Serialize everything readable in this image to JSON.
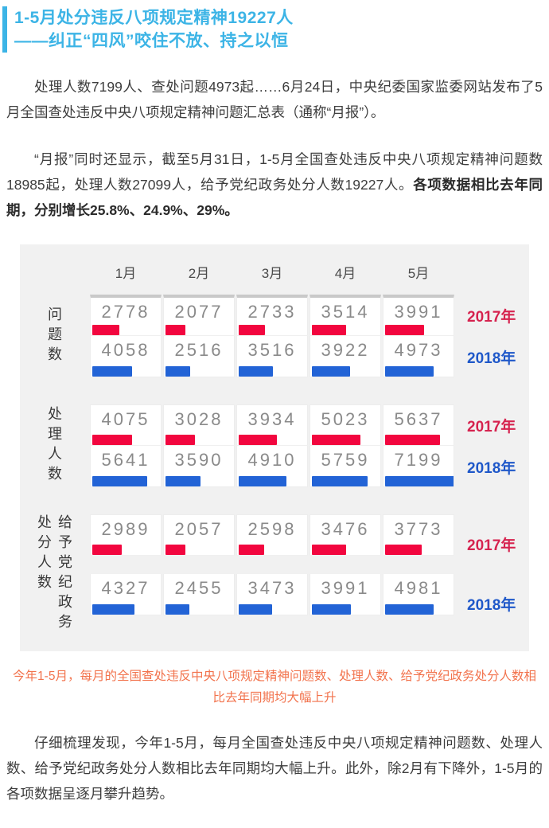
{
  "title": {
    "line1": "1-5月处分违反八项规定精神19227人",
    "line2": "——纠正“四风”咬住不放、持之以恒",
    "accent_color": "#3cb4e6"
  },
  "paragraphs": {
    "p1": "处理人数7199人、查处问题4973起……6月24日，中央纪委国家监委网站发布了5月全国查处违反中央八项规定精神问题汇总表（通称“月报”）。",
    "p2_normal": "“月报”同时还显示，截至5月31日，1-5月全国查处违反中央八项规定精神问题数18985起，处理人数27099人，给予党纪政务处分人数19227人。",
    "p2_bold": "各项数据相比去年同期，分别增长25.8%、24.9%、29%。",
    "p3": "仔细梳理发现，今年1-5月，每月全国查处违反中央八项规定精神问题数、处理人数、给予党纪政务处分人数相比去年同期均大幅上升。此外，除2月有下降外，1-5月的各项数据呈逐月攀升趋势。"
  },
  "caption": "今年1-5月，每月的全国查处违反中央八项规定精神问题数、处理人数、给予党纪政务处分人数相比去年同期均大幅上升",
  "chart_data": {
    "type": "bar",
    "categories": [
      "1月",
      "2月",
      "3月",
      "4月",
      "5月"
    ],
    "max_value": 7199,
    "background": "#f1f1f1",
    "groups": [
      {
        "label_lines": [
          "问题数"
        ],
        "series": [
          {
            "name": "2017年",
            "bar_color": "#f2063f",
            "label_color": "#d6234f",
            "values": [
              2778,
              2077,
              2733,
              3514,
              3991
            ]
          },
          {
            "name": "2018年",
            "bar_color": "#2263d6",
            "label_color": "#1f58c9",
            "values": [
              4058,
              2516,
              3516,
              3922,
              4973
            ]
          }
        ]
      },
      {
        "label_lines": [
          "处理人数"
        ],
        "series": [
          {
            "name": "2017年",
            "bar_color": "#f2063f",
            "label_color": "#d6234f",
            "values": [
              4075,
              3028,
              3934,
              5023,
              5637
            ]
          },
          {
            "name": "2018年",
            "bar_color": "#2263d6",
            "label_color": "#1f58c9",
            "values": [
              5641,
              3590,
              4910,
              5759,
              7199
            ]
          }
        ]
      },
      {
        "label_lines": [
          "给予党纪政务",
          "处分人数"
        ],
        "series": [
          {
            "name": "2017年",
            "bar_color": "#f2063f",
            "label_color": "#d6234f",
            "values": [
              2989,
              2057,
              2598,
              3476,
              3773
            ]
          },
          {
            "name": "2018年",
            "bar_color": "#2263d6",
            "label_color": "#1f58c9",
            "values": [
              4327,
              2455,
              3473,
              3991,
              4981
            ]
          }
        ]
      }
    ]
  }
}
